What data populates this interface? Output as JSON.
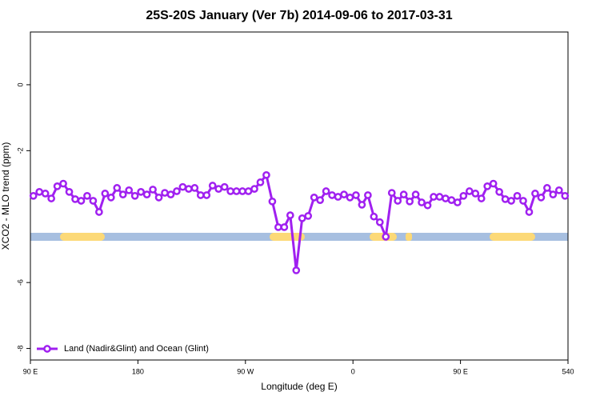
{
  "chart_data": {
    "type": "line",
    "title": "25S-20S January (Ver 7b)   2014-09-06 to 2017-03-31",
    "x_label": "Longitude (deg E)",
    "y_label": "XCO2 - MLO trend (ppm)",
    "x": [
      92.5,
      97.5,
      102.5,
      107.5,
      112.5,
      117.5,
      122.5,
      127.5,
      132.5,
      137.5,
      142.5,
      147.5,
      152.5,
      157.5,
      162.5,
      167.5,
      172.5,
      177.5,
      182.5,
      187.5,
      192.5,
      197.5,
      202.5,
      207.5,
      212.5,
      217.5,
      222.5,
      227.5,
      232.5,
      237.5,
      242.5,
      247.5,
      252.5,
      257.5,
      262.5,
      267.5,
      272.5,
      277.5,
      282.5,
      287.5,
      292.5,
      297.5,
      302.5,
      307.5,
      312.5,
      317.5,
      322.5,
      327.5,
      332.5,
      337.5,
      342.5,
      347.5,
      352.5,
      357.5,
      362.5,
      367.5,
      372.5,
      377.5,
      382.5,
      387.5,
      392.5,
      397.5,
      402.5,
      407.5,
      412.5,
      417.5,
      422.5,
      427.5,
      432.5,
      437.5,
      442.5,
      447.5,
      452.5,
      457.5,
      462.5,
      467.5,
      472.5,
      477.5,
      482.5,
      487.5,
      492.5,
      497.5,
      502.5,
      507.5,
      512.5,
      517.5,
      522.5,
      527.5,
      532.5,
      537.5
    ],
    "series": [
      {
        "name": "Land (Nadir&Glint) and Ocean (Glint)",
        "color": "#a020f0",
        "values": [
          -3.37,
          -3.25,
          -3.3,
          -3.45,
          -3.08,
          -3.0,
          -3.25,
          -3.47,
          -3.52,
          -3.37,
          -3.52,
          -3.86,
          -3.3,
          -3.42,
          -3.13,
          -3.33,
          -3.2,
          -3.37,
          -3.25,
          -3.33,
          -3.18,
          -3.42,
          -3.28,
          -3.33,
          -3.23,
          -3.1,
          -3.16,
          -3.13,
          -3.35,
          -3.35,
          -3.06,
          -3.16,
          -3.1,
          -3.23,
          -3.23,
          -3.23,
          -3.23,
          -3.16,
          -2.96,
          -2.74,
          -3.54,
          -4.32,
          -4.32,
          -3.96,
          -5.63,
          -4.05,
          -3.98,
          -3.42,
          -3.5,
          -3.23,
          -3.35,
          -3.4,
          -3.33,
          -3.42,
          -3.35,
          -3.64,
          -3.35,
          -4.0,
          -4.17,
          -4.61,
          -3.28,
          -3.52,
          -3.33,
          -3.54,
          -3.33,
          -3.57,
          -3.66,
          -3.4,
          -3.4,
          -3.45,
          -3.5,
          -3.57,
          -3.37,
          -3.23,
          -3.3,
          -3.45,
          -3.08,
          -3.0,
          -3.25,
          -3.47,
          -3.52,
          -3.37,
          -3.52,
          -3.86,
          -3.3,
          -3.42,
          -3.13,
          -3.33,
          -3.2,
          -3.37
        ]
      }
    ],
    "xlim": [
      90,
      540
    ],
    "xticks": [
      {
        "value": 90,
        "label": "90 E"
      },
      180,
      {
        "value": 270,
        "label": "90 W"
      },
      {
        "value": 360,
        "label": "0"
      },
      {
        "value": 450,
        "label": "90 E"
      },
      540
    ],
    "ylim": [
      -8.35,
      1.6
    ],
    "yticks": [
      0,
      -2,
      -6,
      -8
    ],
    "legend": "bottom-left"
  }
}
